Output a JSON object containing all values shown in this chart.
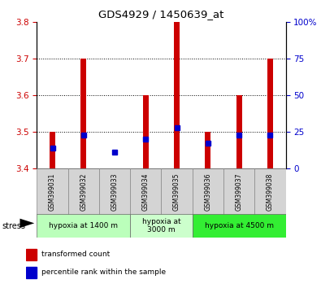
{
  "title": "GDS4929 / 1450639_at",
  "samples": [
    "GSM399031",
    "GSM399032",
    "GSM399033",
    "GSM399034",
    "GSM399035",
    "GSM399036",
    "GSM399037",
    "GSM399038"
  ],
  "bar_tops": [
    3.5,
    3.7,
    3.4,
    3.6,
    3.8,
    3.5,
    3.6,
    3.7
  ],
  "bar_base": 3.4,
  "blue_values": [
    3.455,
    3.49,
    3.445,
    3.48,
    3.51,
    3.468,
    3.49,
    3.49
  ],
  "ylim": [
    3.4,
    3.8
  ],
  "yticks_left": [
    3.4,
    3.5,
    3.6,
    3.7,
    3.8
  ],
  "yticks_right": [
    0,
    25,
    50,
    75,
    100
  ],
  "bar_color": "#cc0000",
  "blue_color": "#0000cc",
  "groups": [
    {
      "label": "hypoxia at 1400 m",
      "start": 0,
      "end": 3,
      "color": "#bbffbb"
    },
    {
      "label": "hypoxia at\n3000 m",
      "start": 3,
      "end": 5,
      "color": "#ccffcc"
    },
    {
      "label": "hypoxia at 4500 m",
      "start": 5,
      "end": 8,
      "color": "#33ee33"
    }
  ],
  "legend_items": [
    {
      "color": "#cc0000",
      "label": "transformed count"
    },
    {
      "color": "#0000cc",
      "label": "percentile rank within the sample"
    }
  ],
  "left_color": "#cc0000",
  "right_color": "#0000cc",
  "bar_width": 0.18
}
